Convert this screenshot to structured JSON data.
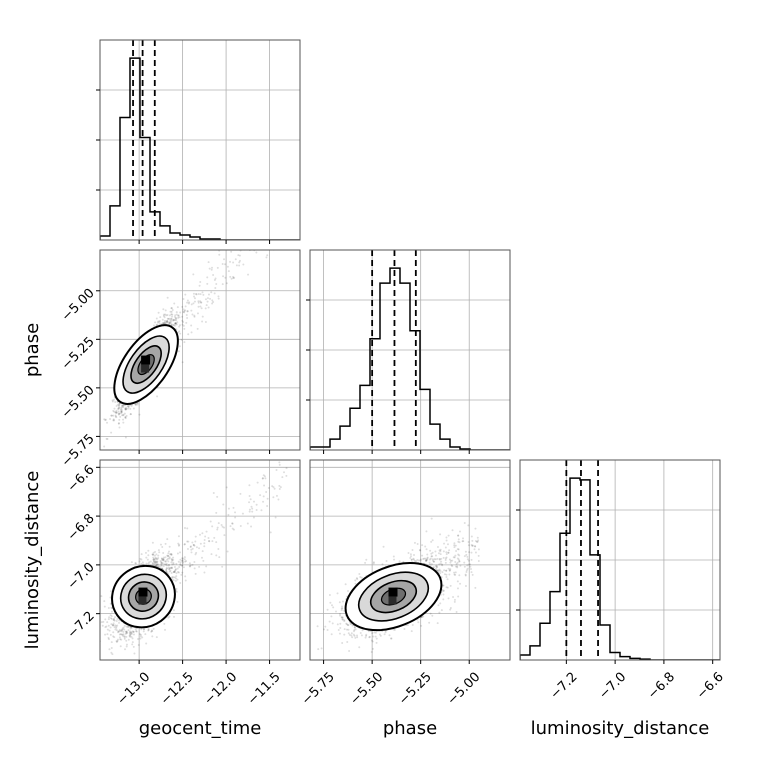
{
  "chart_data": {
    "type": "corner",
    "parameters": [
      "geocent_time",
      "phase",
      "luminosity_distance"
    ],
    "labels": {
      "geocent_time": "geocent_time",
      "phase": "phase",
      "luminosity_distance": "luminosity_distance"
    },
    "ranges": {
      "geocent_time": [
        -13.45,
        -11.15
      ],
      "phase": [
        -5.82,
        -4.79
      ],
      "luminosity_distance": [
        -7.39,
        -6.57
      ]
    },
    "ticks": {
      "geocent_time": [
        -13.0,
        -12.5,
        -12.0,
        -11.5
      ],
      "phase": [
        -5.75,
        -5.5,
        -5.25,
        -5.0
      ],
      "luminosity_distance": [
        -7.2,
        -7.0,
        -6.8,
        -6.6
      ]
    },
    "tick_labels": {
      "geocent_time": [
        "−13.0",
        "−12.5",
        "−12.0",
        "−11.5"
      ],
      "phase": [
        "−5.75",
        "−5.50",
        "−5.25",
        "−5.00"
      ],
      "luminosity_distance": [
        "−7.2",
        "−7.0",
        "−6.8",
        "−6.6"
      ]
    },
    "grid": true,
    "histograms": {
      "geocent_time": {
        "bin_edges": [
          -13.45,
          -13.335,
          -13.22,
          -13.105,
          -12.99,
          -12.875,
          -12.76,
          -12.645,
          -12.53,
          -12.415,
          -12.3,
          -12.185,
          -12.07,
          -11.955,
          -11.84,
          -11.725,
          -11.61,
          -11.495,
          -11.38,
          -11.265,
          -11.15
        ],
        "counts": [
          4,
          34,
          122,
          181,
          102,
          28,
          14,
          7,
          5,
          3,
          1,
          1,
          0,
          0,
          0,
          0,
          0,
          0,
          0,
          0
        ],
        "quantiles": [
          -13.07,
          -12.96,
          -12.82
        ]
      },
      "phase": {
        "bin_edges": [
          -5.82,
          -5.7685,
          -5.717,
          -5.6655,
          -5.614,
          -5.5625,
          -5.511,
          -5.4595,
          -5.408,
          -5.3565,
          -5.305,
          -5.2535,
          -5.202,
          -5.1505,
          -5.099,
          -5.0475,
          -4.996,
          -4.9445,
          -4.893,
          -4.8415,
          -4.79
        ],
        "counts": [
          3,
          3,
          11,
          24,
          42,
          65,
          112,
          168,
          183,
          168,
          120,
          61,
          26,
          11,
          3,
          1,
          0,
          0,
          0,
          0
        ],
        "quantiles": [
          -5.5,
          -5.385,
          -5.275
        ]
      },
      "luminosity_distance": {
        "bin_edges": [
          -7.39,
          -7.349,
          -7.308,
          -7.267,
          -7.226,
          -7.185,
          -7.144,
          -7.103,
          -7.062,
          -7.021,
          -6.98,
          -6.939,
          -6.898,
          -6.857,
          -6.816,
          -6.775,
          -6.734,
          -6.693,
          -6.652,
          -6.611,
          -6.57
        ],
        "counts": [
          6,
          17,
          44,
          82,
          152,
          218,
          216,
          126,
          42,
          9,
          4,
          2,
          1,
          0,
          0,
          0,
          0,
          0,
          0,
          0
        ],
        "quantiles": [
          -7.2,
          -7.14,
          -7.07
        ]
      }
    },
    "scatter": {
      "phase_vs_geocent_time": {
        "x": "geocent_time",
        "y": "phase",
        "mean": [
          -12.92,
          -5.38
        ],
        "std": [
          0.15,
          0.11
        ],
        "corr": 0.87,
        "tail": {
          "x_range": [
            -12.8,
            -11.3
          ],
          "slope": 0.52,
          "spread": 0.08
        }
      },
      "luminosity_distance_vs_geocent_time": {
        "x": "geocent_time",
        "y": "luminosity_distance",
        "mean": [
          -12.95,
          -7.13
        ],
        "std": [
          0.15,
          0.07
        ],
        "corr": 0.55,
        "tail": {
          "x_range": [
            -12.8,
            -11.3
          ],
          "slope": 0.3,
          "spread": 0.06
        }
      },
      "luminosity_distance_vs_phase": {
        "x": "phase",
        "y": "luminosity_distance",
        "mean": [
          -5.39,
          -7.13
        ],
        "std": [
          0.12,
          0.07
        ],
        "corr": 0.55,
        "tail": {
          "x_range": [
            -5.3,
            -4.95
          ],
          "slope": 0.45,
          "spread": 0.06
        }
      }
    }
  }
}
